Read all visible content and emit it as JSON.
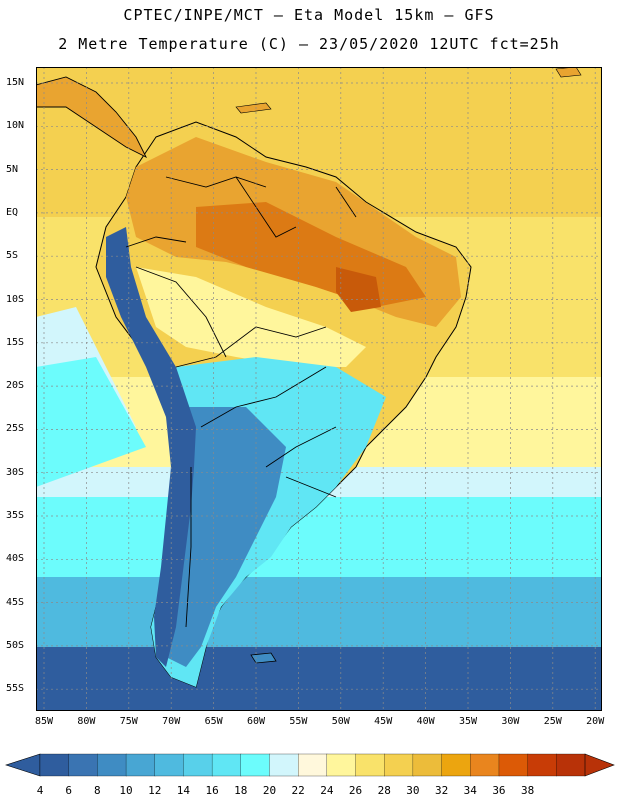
{
  "header": {
    "title_line1": "CPTEC/INPE/MCT –  Eta Model 15km – GFS",
    "title_line2": "2 Metre Temperature (C) – 23/05/2020 12UTC fct=25h"
  },
  "axes": {
    "lat_labels": [
      "15N",
      "10N",
      "5N",
      "EQ",
      "5S",
      "10S",
      "15S",
      "20S",
      "25S",
      "30S",
      "35S",
      "40S",
      "45S",
      "50S",
      "55S"
    ],
    "lon_labels": [
      "85W",
      "80W",
      "75W",
      "70W",
      "65W",
      "60W",
      "55W",
      "50W",
      "45W",
      "40W",
      "35W",
      "30W",
      "25W",
      "20W"
    ]
  },
  "colorbar": {
    "labels": [
      "4",
      "6",
      "8",
      "10",
      "12",
      "14",
      "16",
      "18",
      "20",
      "22",
      "24",
      "26",
      "28",
      "30",
      "32",
      "34",
      "36",
      "38"
    ],
    "colors": [
      "#2f5d9e",
      "#3a74b2",
      "#3f8cc3",
      "#48a6d3",
      "#4fbadf",
      "#58d0ea",
      "#60e6f4",
      "#6cfcfc",
      "#d2f6fc",
      "#fff8dc",
      "#fff69c",
      "#f9e26a",
      "#f4d050",
      "#ecbc3a",
      "#eca50f",
      "#e9851e",
      "#dc5a06",
      "#c83c06",
      "#b83208"
    ]
  },
  "map": {
    "regions": {
      "tropical_land": "#e9a430",
      "hot_core": "#dc7a14",
      "hottest": "#c85a0a",
      "warm_land": "#f4d050",
      "mild_land": "#fff69c",
      "cool_land": "#60e6f4",
      "cold_land": "#3f8cc3",
      "andes_cold": "#2f5d9e",
      "ocean_north": "#f4d050",
      "ocean_tropical": "#f9e26a",
      "ocean_subtropical": "#fff69c",
      "ocean_mid": "#6cfcfc",
      "ocean_south": "#4fbadf",
      "ocean_far_south": "#2f5d9e"
    }
  }
}
